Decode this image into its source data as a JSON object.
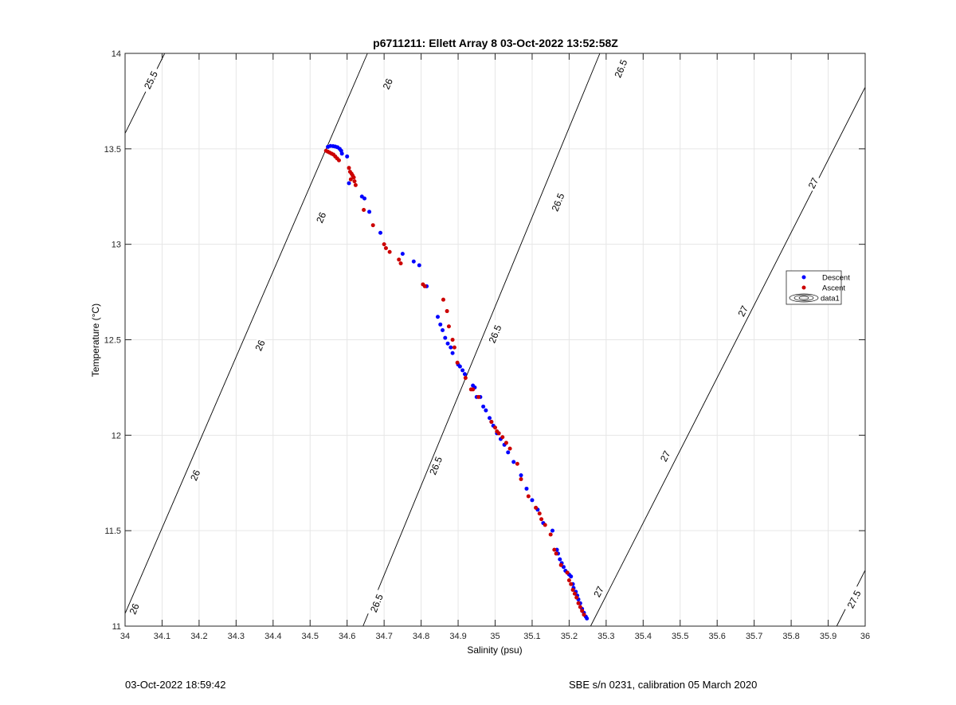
{
  "chart_data": {
    "type": "scatter",
    "title": "p6711211: Ellett Array 8 03-Oct-2022 13:52:58Z",
    "xlabel": "Salinity (psu)",
    "ylabel": "Temperature (°C)",
    "xlim": [
      34,
      36
    ],
    "ylim": [
      11,
      14
    ],
    "xticks": [
      34,
      34.1,
      34.2,
      34.3,
      34.4,
      34.5,
      34.6,
      34.7,
      34.8,
      34.9,
      35,
      35.1,
      35.2,
      35.3,
      35.4,
      35.5,
      35.6,
      35.7,
      35.8,
      35.9,
      36
    ],
    "xtick_labels": [
      "34",
      "34.1",
      "34.2",
      "34.3",
      "34.4",
      "34.5",
      "34.6",
      "34.7",
      "34.8",
      "34.9",
      "35",
      "35.1",
      "35.2",
      "35.3",
      "35.4",
      "35.5",
      "35.6",
      "35.7",
      "35.8",
      "35.9",
      "36"
    ],
    "yticks": [
      11,
      11.5,
      12,
      12.5,
      13,
      13.5,
      14
    ],
    "ytick_labels": [
      "11",
      "11.5",
      "12",
      "12.5",
      "13",
      "13.5",
      "14"
    ],
    "grid": true,
    "legend_position": "right",
    "legend": [
      "Descent",
      "Ascent",
      "data1"
    ],
    "series": [
      {
        "name": "Descent",
        "color": "#0000ff",
        "x": [
          34.548,
          34.555,
          34.562,
          34.568,
          34.574,
          34.58,
          34.584,
          34.586,
          34.6,
          34.605,
          34.64,
          34.647,
          34.66,
          34.69,
          34.75,
          34.78,
          34.795,
          34.815,
          34.845,
          34.852,
          34.858,
          34.865,
          34.872,
          34.88,
          34.885,
          34.9,
          34.905,
          34.912,
          34.918,
          34.94,
          34.945,
          34.95,
          34.96,
          34.968,
          34.975,
          34.985,
          34.99,
          34.995,
          35.005,
          35.015,
          35.025,
          35.035,
          35.05,
          35.07,
          35.085,
          35.1,
          35.115,
          35.13,
          35.155,
          35.167,
          35.17,
          35.175,
          35.18,
          35.185,
          35.19,
          35.195,
          35.2,
          35.205,
          35.21,
          35.212,
          35.218,
          35.222,
          35.225,
          35.23,
          35.235,
          35.24,
          35.245,
          35.248
        ],
        "y": [
          13.51,
          13.515,
          13.514,
          13.512,
          13.508,
          13.5,
          13.49,
          13.475,
          13.46,
          13.32,
          13.25,
          13.24,
          13.17,
          13.06,
          12.95,
          12.91,
          12.89,
          12.78,
          12.62,
          12.58,
          12.55,
          12.51,
          12.48,
          12.46,
          12.43,
          12.37,
          12.36,
          12.34,
          12.32,
          12.26,
          12.25,
          12.2,
          12.2,
          12.15,
          12.13,
          12.09,
          12.07,
          12.05,
          12.01,
          11.98,
          11.95,
          11.91,
          11.86,
          11.79,
          11.72,
          11.66,
          11.61,
          11.54,
          11.5,
          11.4,
          11.38,
          11.35,
          11.33,
          11.31,
          11.29,
          11.28,
          11.27,
          11.26,
          11.22,
          11.2,
          11.18,
          11.16,
          11.14,
          11.12,
          11.09,
          11.07,
          11.05,
          11.04
        ]
      },
      {
        "name": "Ascent",
        "color": "#cc0000",
        "x": [
          34.543,
          34.548,
          34.553,
          34.558,
          34.563,
          34.568,
          34.573,
          34.578,
          34.605,
          34.608,
          34.612,
          34.615,
          34.618,
          34.61,
          34.62,
          34.623,
          34.645,
          34.67,
          34.7,
          34.705,
          34.715,
          34.74,
          34.745,
          34.805,
          34.81,
          34.86,
          34.87,
          34.875,
          34.885,
          34.89,
          34.898,
          34.92,
          34.935,
          34.94,
          34.955,
          34.99,
          35.0,
          35.005,
          35.01,
          35.02,
          35.03,
          35.04,
          35.06,
          35.07,
          35.09,
          35.11,
          35.12,
          35.125,
          35.135,
          35.15,
          35.16,
          35.165,
          35.178,
          35.195,
          35.2,
          35.205,
          35.21,
          35.215,
          35.22,
          35.225,
          35.23,
          35.235,
          35.24
        ],
        "y": [
          13.49,
          13.485,
          13.48,
          13.475,
          13.47,
          13.46,
          13.45,
          13.44,
          13.4,
          13.38,
          13.37,
          13.36,
          13.35,
          13.34,
          13.33,
          13.31,
          13.18,
          13.1,
          13.0,
          12.98,
          12.96,
          12.92,
          12.9,
          12.79,
          12.78,
          12.71,
          12.65,
          12.57,
          12.5,
          12.46,
          12.38,
          12.3,
          12.24,
          12.24,
          12.2,
          12.07,
          12.04,
          12.02,
          12.01,
          11.99,
          11.96,
          11.93,
          11.85,
          11.77,
          11.68,
          11.62,
          11.59,
          11.56,
          11.53,
          11.48,
          11.4,
          11.38,
          11.32,
          11.28,
          11.24,
          11.22,
          11.19,
          11.17,
          11.15,
          11.12,
          11.1,
          11.08,
          11.06
        ]
      }
    ],
    "isopycnals": [
      {
        "sigma": 25.5,
        "label": "25.5",
        "points": [
          [
            34.0,
            13.581
          ],
          [
            34.107,
            14.0
          ]
        ],
        "labels_at": [
          [
            34.07,
            13.86
          ]
        ]
      },
      {
        "sigma": 26,
        "label": "26",
        "points": [
          [
            34.0,
            11.066
          ],
          [
            34.655,
            14.0
          ]
        ],
        "labels_at": [
          [
            34.025,
            11.09
          ],
          [
            34.19,
            11.79
          ],
          [
            34.365,
            12.47
          ],
          [
            34.53,
            13.14
          ],
          [
            34.71,
            13.84
          ]
        ]
      },
      {
        "sigma": 26.5,
        "label": "26.5",
        "points": [
          [
            34.643,
            11.0
          ],
          [
            35.283,
            14.0
          ]
        ],
        "labels_at": [
          [
            34.68,
            11.12
          ],
          [
            34.84,
            11.84
          ],
          [
            35.0,
            12.53
          ],
          [
            35.17,
            13.22
          ],
          [
            35.34,
            13.92
          ]
        ]
      },
      {
        "sigma": 27,
        "label": "27",
        "points": [
          [
            35.258,
            11.0
          ],
          [
            36.0,
            13.823
          ]
        ],
        "labels_at": [
          [
            35.28,
            11.18
          ],
          [
            35.46,
            11.89
          ],
          [
            35.67,
            12.65
          ],
          [
            35.86,
            13.32
          ]
        ]
      },
      {
        "sigma": 27.5,
        "label": "27.5",
        "points": [
          [
            35.923,
            11.0
          ],
          [
            36.0,
            11.293
          ]
        ],
        "labels_at": [
          [
            35.97,
            11.14
          ]
        ]
      }
    ]
  },
  "footer": {
    "left": "03-Oct-2022 18:59:42",
    "right": "SBE s/n 0231, calibration 05 March 2020"
  }
}
